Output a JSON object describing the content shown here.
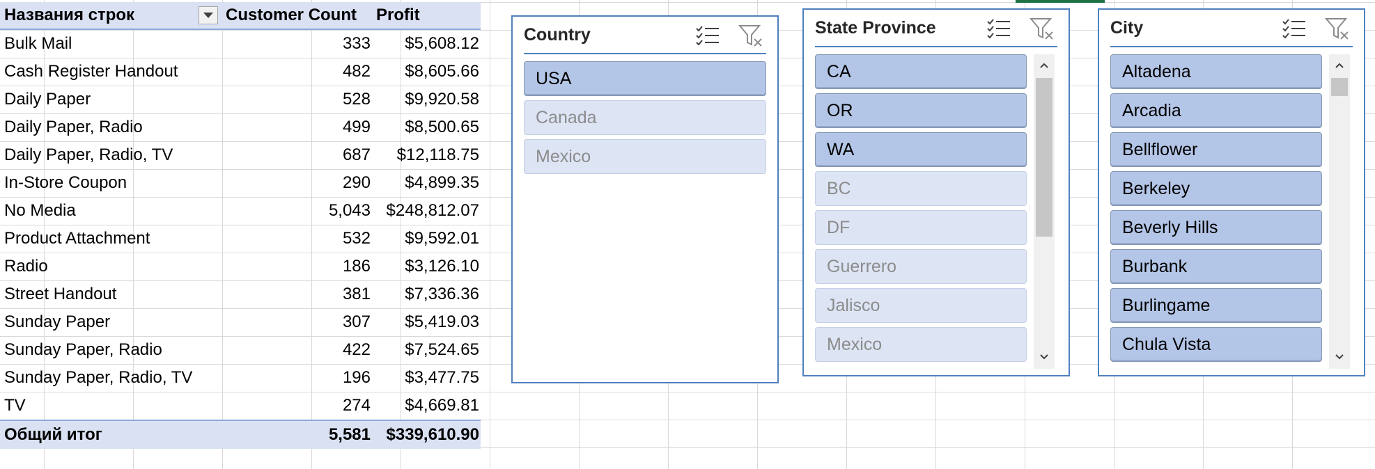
{
  "pivot": {
    "headers": {
      "row_labels": "Названия строк",
      "count": "Customer Count",
      "profit": "Profit"
    },
    "rows": [
      {
        "label": "Bulk Mail",
        "count": "333",
        "profit": "$5,608.12"
      },
      {
        "label": "Cash Register Handout",
        "count": "482",
        "profit": "$8,605.66"
      },
      {
        "label": "Daily Paper",
        "count": "528",
        "profit": "$9,920.58"
      },
      {
        "label": "Daily Paper, Radio",
        "count": "499",
        "profit": "$8,500.65"
      },
      {
        "label": "Daily Paper, Radio, TV",
        "count": "687",
        "profit": "$12,118.75"
      },
      {
        "label": "In-Store Coupon",
        "count": "290",
        "profit": "$4,899.35"
      },
      {
        "label": "No Media",
        "count": "5,043",
        "profit": "$248,812.07"
      },
      {
        "label": "Product Attachment",
        "count": "532",
        "profit": "$9,592.01"
      },
      {
        "label": "Radio",
        "count": "186",
        "profit": "$3,126.10"
      },
      {
        "label": "Street Handout",
        "count": "381",
        "profit": "$7,336.36"
      },
      {
        "label": "Sunday Paper",
        "count": "307",
        "profit": "$5,419.03"
      },
      {
        "label": "Sunday Paper, Radio",
        "count": "422",
        "profit": "$7,524.65"
      },
      {
        "label": "Sunday Paper, Radio, TV",
        "count": "196",
        "profit": "$3,477.75"
      },
      {
        "label": "TV",
        "count": "274",
        "profit": "$4,669.81"
      }
    ],
    "total": {
      "label": "Общий итог",
      "count": "5,581",
      "profit": "$339,610.90"
    }
  },
  "slicers": {
    "country": {
      "title": "Country",
      "items": [
        {
          "label": "USA",
          "selected": true
        },
        {
          "label": "Canada",
          "selected": false
        },
        {
          "label": "Mexico",
          "selected": false
        }
      ]
    },
    "state": {
      "title": "State Province",
      "items": [
        {
          "label": "CA",
          "selected": true
        },
        {
          "label": "OR",
          "selected": true
        },
        {
          "label": "WA",
          "selected": true
        },
        {
          "label": "BC",
          "selected": false
        },
        {
          "label": "DF",
          "selected": false
        },
        {
          "label": "Guerrero",
          "selected": false
        },
        {
          "label": "Jalisco",
          "selected": false
        },
        {
          "label": "Mexico",
          "selected": false
        }
      ]
    },
    "city": {
      "title": "City",
      "items": [
        {
          "label": "Altadena",
          "selected": true
        },
        {
          "label": "Arcadia",
          "selected": true
        },
        {
          "label": "Bellflower",
          "selected": true
        },
        {
          "label": "Berkeley",
          "selected": true
        },
        {
          "label": "Beverly Hills",
          "selected": true
        },
        {
          "label": "Burbank",
          "selected": true
        },
        {
          "label": "Burlingame",
          "selected": true
        },
        {
          "label": "Chula Vista",
          "selected": true
        }
      ]
    }
  },
  "icons": {
    "multi_select": "multi-select-icon",
    "clear_filter": "clear-filter-icon",
    "dropdown": "dropdown-arrow-icon",
    "scroll_up": "scroll-up-icon",
    "scroll_down": "scroll-down-icon"
  },
  "colors": {
    "slicer_border": "#4f81bd",
    "selected_item": "#b4c6e7",
    "unselected_item": "#dde4f4",
    "pivot_header": "#d9e1f2",
    "grid": "#d9d9d9"
  }
}
